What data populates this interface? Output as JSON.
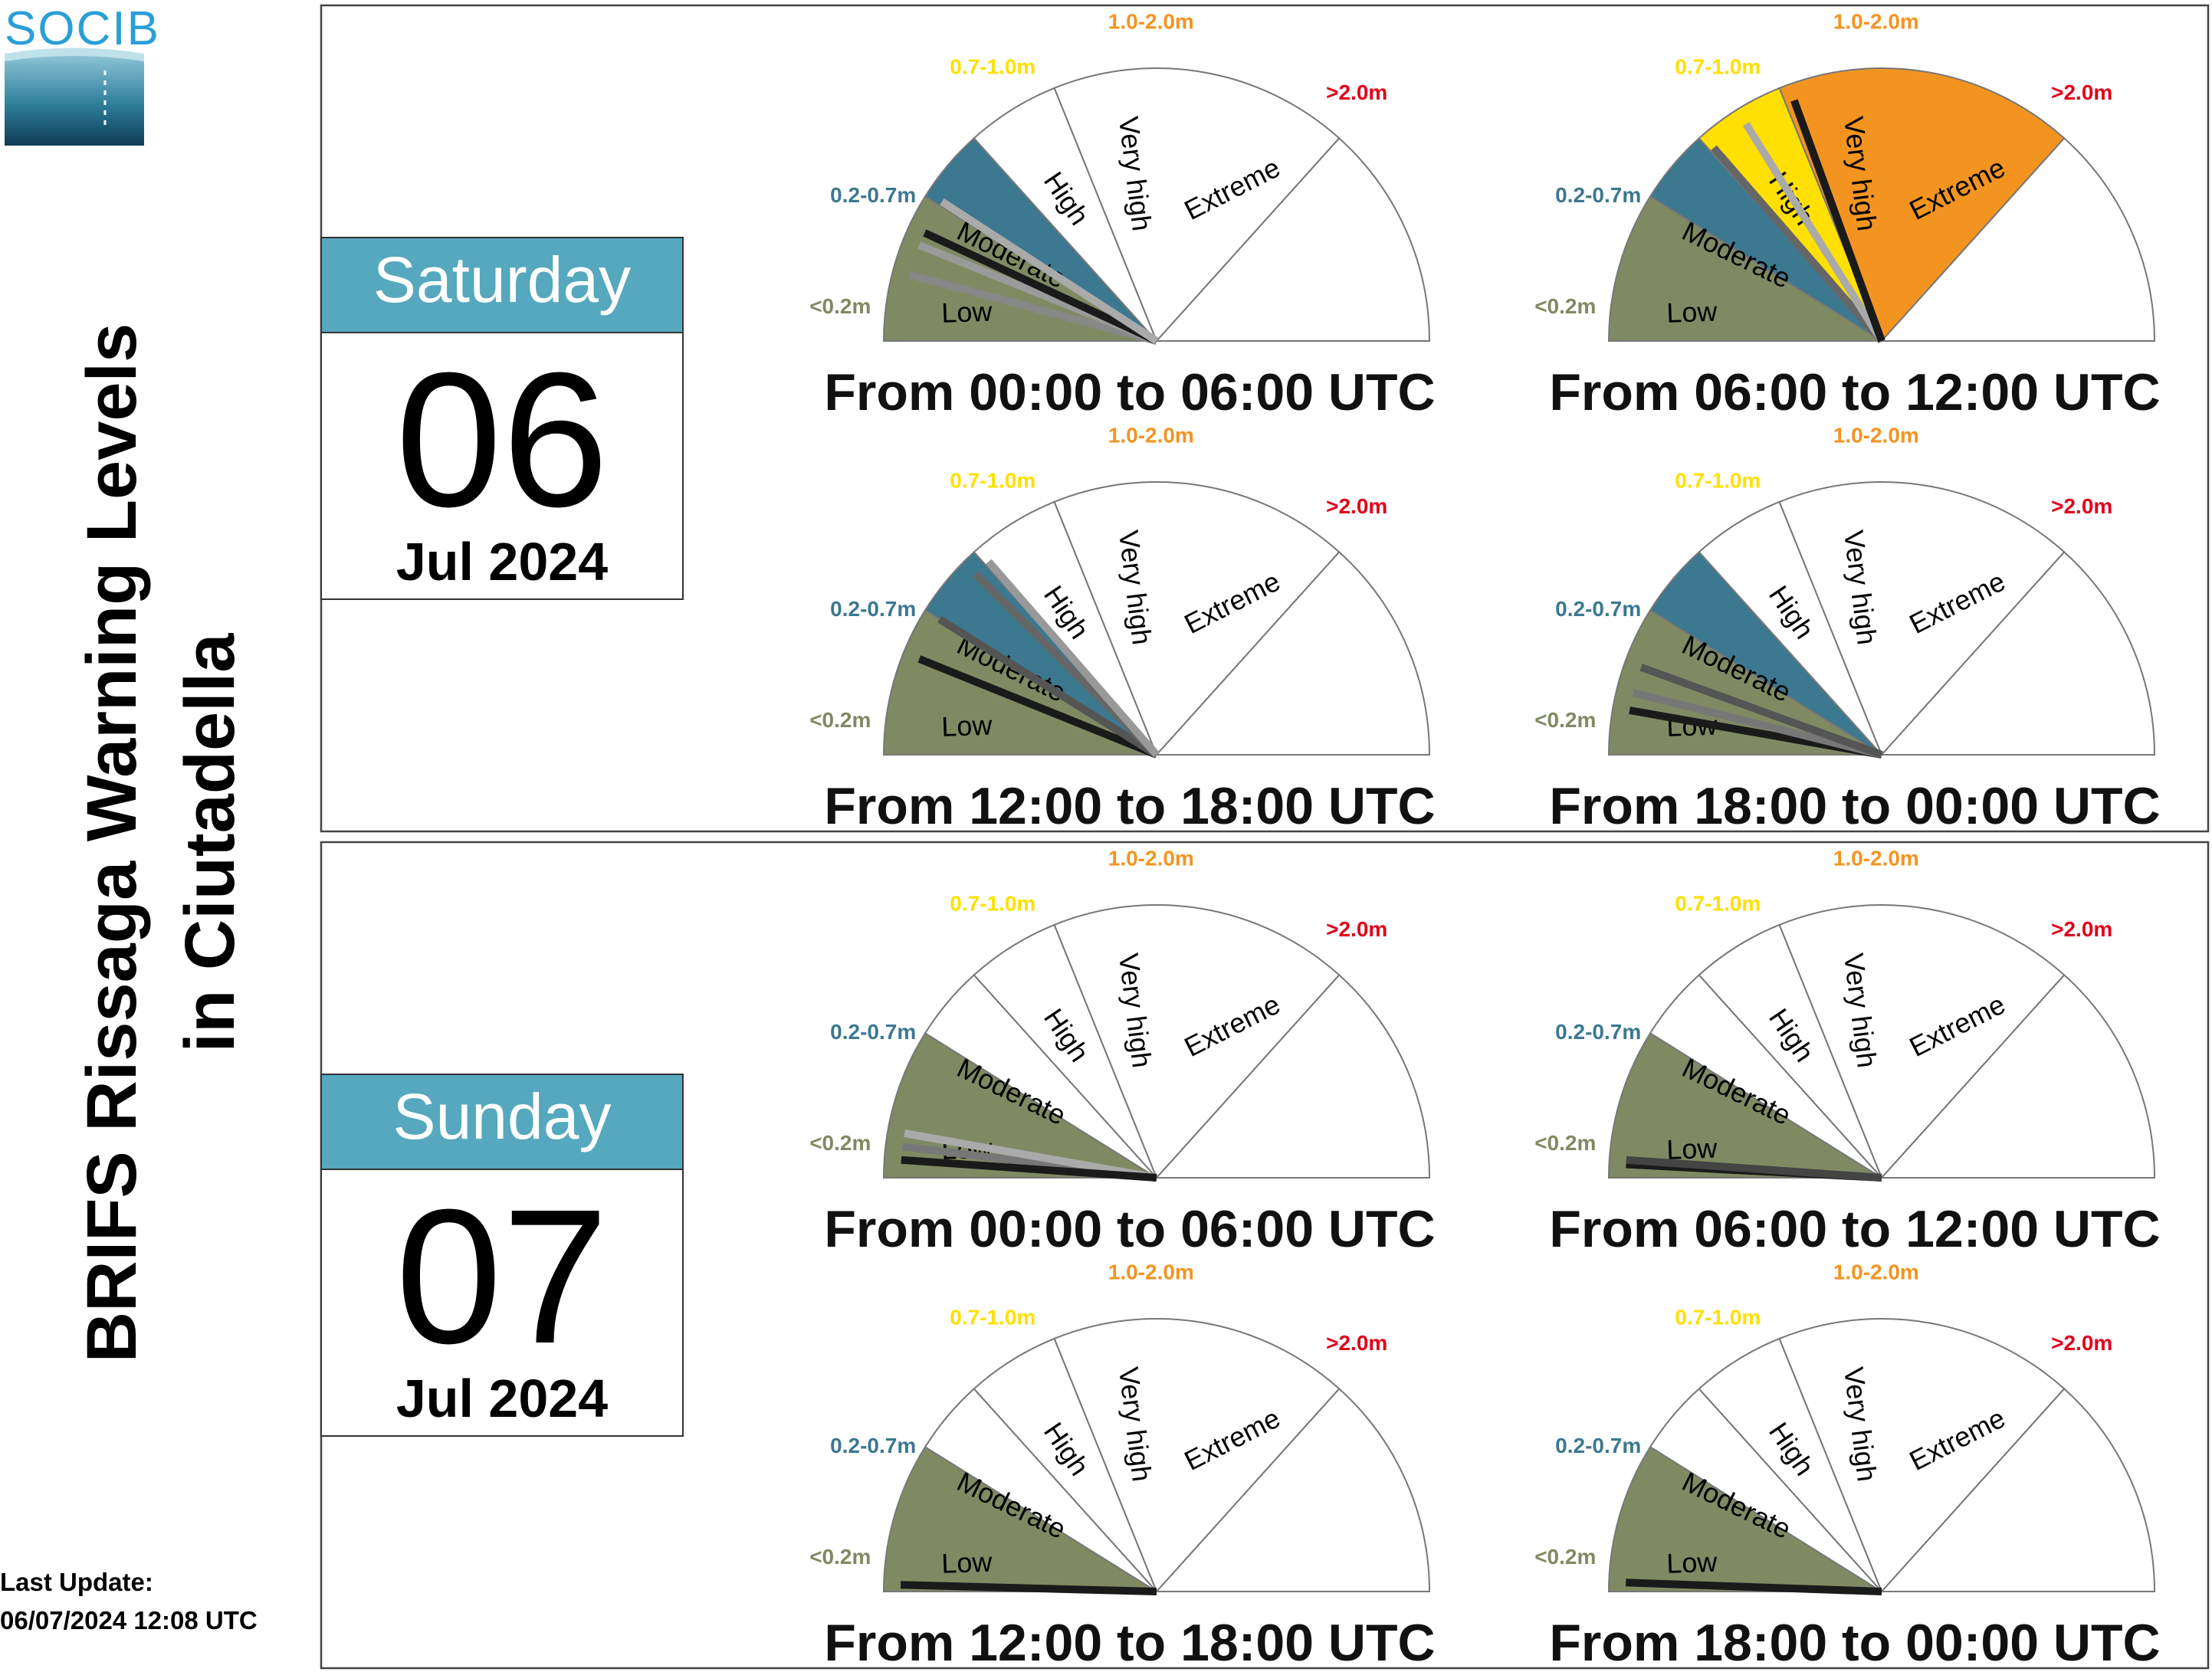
{
  "logo": {
    "text": "SOCIB",
    "color": "#2a9fd6"
  },
  "title": {
    "line1": "BRIFS Rissaga Warning Levels",
    "line2": "in Ciutadella"
  },
  "last_update": {
    "label": "Last Update:",
    "value": "06/07/2024 12:08 UTC"
  },
  "colors": {
    "low": "#7f8a63",
    "moderate": "#3c7890",
    "high": "#ffe000",
    "very_high": "#f39421",
    "extreme": "#e2001a",
    "calendar_header": "#55a8bd"
  },
  "gauge_legend": {
    "sectors": [
      "Low",
      "Moderate",
      "High",
      "Very high",
      "Extreme"
    ],
    "ranges": [
      "<0.2m",
      "0.2-0.7m",
      "0.7-1.0m",
      "1.0-2.0m",
      ">2.0m"
    ],
    "range_colors": [
      "#7f8a63",
      "#3c7890",
      "#ffe000",
      "#f39421",
      "#e2001a"
    ]
  },
  "chart_data": [
    {
      "type": "gauge",
      "day": {
        "weekday": "Saturday",
        "date": "06",
        "month_year": "Jul 2024"
      },
      "periods": [
        {
          "label": "From 00:00 to 06:00 UTC",
          "active_level": 1,
          "needles": [
            {
              "angle": 165,
              "color": "#888888"
            },
            {
              "angle": 158,
              "color": "#9a9a9a"
            },
            {
              "angle": 155,
              "color": "#1a1a1a"
            },
            {
              "angle": 147,
              "color": "#aaaaaa"
            }
          ]
        },
        {
          "label": "From 06:00 to 12:00 UTC",
          "active_level": 3,
          "needles": [
            {
              "angle": 131,
              "color": "#666666"
            },
            {
              "angle": 122,
              "color": "#aaaaaa"
            },
            {
              "angle": 110,
              "color": "#1a1a1a"
            }
          ]
        },
        {
          "label": "From 12:00 to 18:00 UTC",
          "active_level": 1,
          "needles": [
            {
              "angle": 158,
              "color": "#1a1a1a"
            },
            {
              "angle": 148,
              "color": "#555555"
            },
            {
              "angle": 135,
              "color": "#666666"
            },
            {
              "angle": 131,
              "color": "#999999"
            }
          ]
        },
        {
          "label": "From 18:00 to 00:00 UTC",
          "active_level": 1,
          "needles": [
            {
              "angle": 170,
              "color": "#1a1a1a"
            },
            {
              "angle": 166,
              "color": "#777777"
            },
            {
              "angle": 160,
              "color": "#555555"
            }
          ]
        }
      ]
    },
    {
      "type": "gauge",
      "day": {
        "weekday": "Sunday",
        "date": "07",
        "month_year": "Jul 2024"
      },
      "periods": [
        {
          "label": "From 00:00 to 06:00 UTC",
          "active_level": 0,
          "needles": [
            {
              "angle": 173,
              "color": "#777777"
            },
            {
              "angle": 170,
              "color": "#aaaaaa"
            },
            {
              "angle": 176,
              "color": "#1a1a1a"
            }
          ]
        },
        {
          "label": "From 06:00 to 12:00 UTC",
          "active_level": 0,
          "needles": [
            {
              "angle": 177,
              "color": "#1a1a1a"
            },
            {
              "angle": 176,
              "color": "#444444"
            }
          ]
        },
        {
          "label": "From 12:00 to 18:00 UTC",
          "active_level": 0,
          "needles": [
            {
              "angle": 178.5,
              "color": "#1a1a1a"
            }
          ]
        },
        {
          "label": "From 18:00 to 00:00 UTC",
          "active_level": 0,
          "needles": [
            {
              "angle": 178,
              "color": "#1a1a1a"
            }
          ]
        }
      ]
    }
  ]
}
